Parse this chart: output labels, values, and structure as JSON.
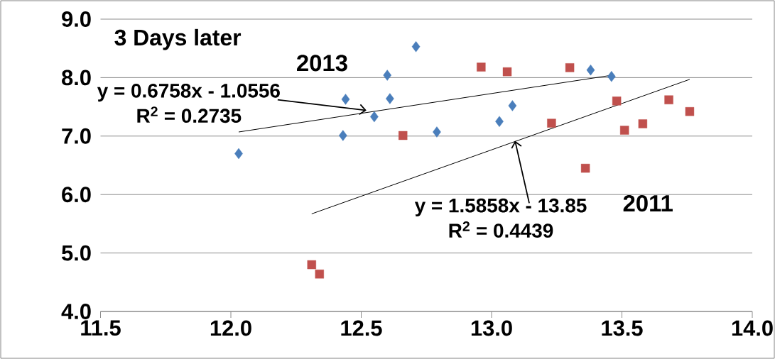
{
  "chart_data": {
    "type": "scatter",
    "title": "3 Days later",
    "xlim": [
      11.5,
      14.0
    ],
    "xticks": [
      {
        "value": 11.5,
        "label": "11.5"
      },
      {
        "value": 12.0,
        "label": "12.0"
      },
      {
        "value": 12.5,
        "label": "12.5"
      },
      {
        "value": 13.0,
        "label": "13.0"
      },
      {
        "value": 13.5,
        "label": "13.5"
      },
      {
        "value": 14.0,
        "label": "14.0"
      }
    ],
    "ylim": [
      4.0,
      9.0
    ],
    "yticks": [
      {
        "value": 4.0,
        "label": "4.0"
      },
      {
        "value": 5.0,
        "label": "5.0"
      },
      {
        "value": 6.0,
        "label": "6.0"
      },
      {
        "value": 7.0,
        "label": "7.0"
      },
      {
        "value": 8.0,
        "label": "8.0"
      },
      {
        "value": 9.0,
        "label": "9.0"
      }
    ],
    "grid": "y",
    "series": [
      {
        "name": "2013",
        "marker": "diamond",
        "color": "#4a7ebb",
        "x": [
          12.03,
          12.43,
          12.44,
          12.55,
          12.6,
          12.61,
          12.71,
          12.79,
          13.03,
          13.08,
          13.38,
          13.46
        ],
        "values": [
          6.7,
          7.01,
          7.63,
          7.33,
          8.04,
          7.64,
          8.53,
          7.07,
          7.25,
          7.52,
          8.13,
          8.02
        ]
      },
      {
        "name": "2011",
        "marker": "square",
        "color": "#c0504d",
        "x": [
          12.31,
          12.34,
          12.66,
          12.96,
          13.06,
          13.23,
          13.3,
          13.36,
          13.48,
          13.51,
          13.58,
          13.68,
          13.76
        ],
        "values": [
          4.8,
          4.64,
          7.01,
          8.18,
          8.1,
          7.22,
          8.17,
          6.45,
          7.6,
          7.1,
          7.21,
          7.62,
          7.42
        ]
      },
      {
        "type": "line",
        "marker": "none",
        "color": "#000000",
        "x": [
          12.03,
          13.46
        ],
        "values": [
          7.07,
          8.04
        ]
      },
      {
        "type": "line",
        "marker": "none",
        "color": "#000000",
        "x": [
          12.31,
          13.76
        ],
        "values": [
          5.67,
          7.97
        ]
      }
    ],
    "annotations": [
      {
        "text": "y = 0.6758x - 1.0556",
        "x": 12.52,
        "y": 7.44
      },
      "R$^{2}$ = 0.2735",
      {
        "text": "y = 1.5858x - 13.85",
        "x": 13.09,
        "y": 6.92
      },
      "R$^{2}$ = 0.4439"
    ]
  }
}
